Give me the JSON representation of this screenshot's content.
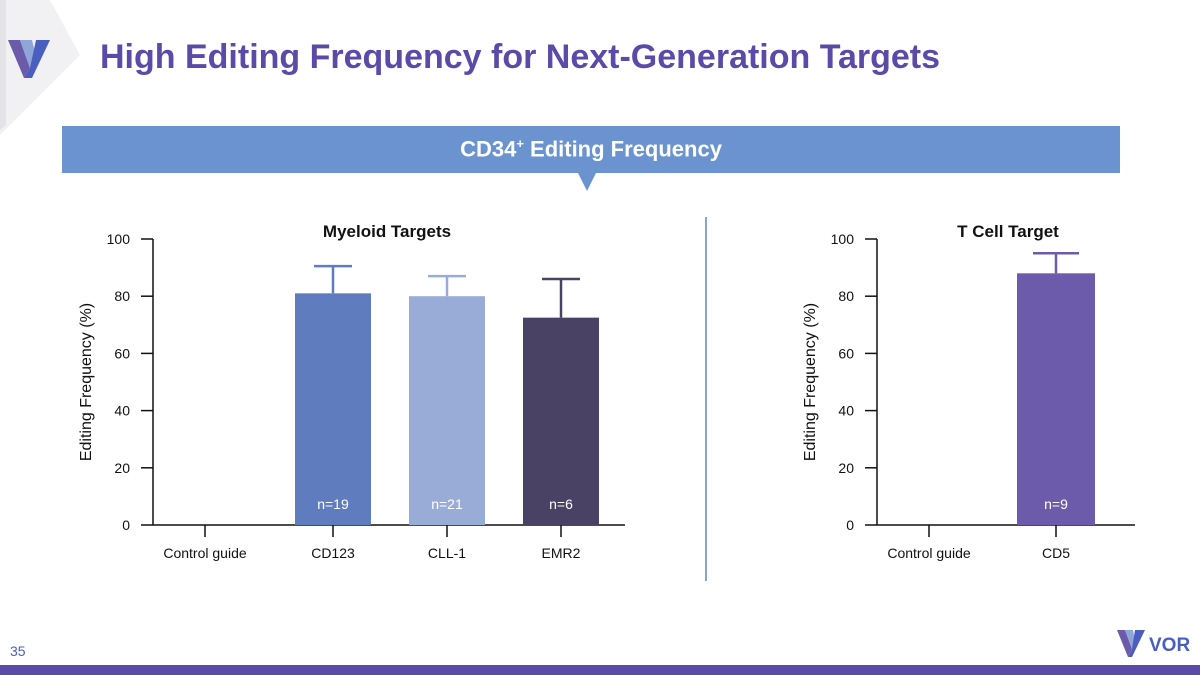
{
  "slide": {
    "title": "High Editing Frequency for Next-Generation Targets",
    "banner": "CD34",
    "banner_sup": "+",
    "banner_rest": " Editing Frequency",
    "page_number": "35",
    "brand": "VOR"
  },
  "colors": {
    "title": "#5b4aa8",
    "banner": "#6a93cf",
    "cd123": "#5f7dbe",
    "cll1": "#99acd8",
    "emr2": "#4a4264",
    "cd5": "#6c5aab",
    "bottom_bar": "#5b4aa8"
  },
  "chart_data": [
    {
      "type": "bar",
      "title": "Myeloid Targets",
      "ylabel": "Editing Frequency (%)",
      "xlabel": "",
      "ylim": [
        0,
        100
      ],
      "yticks": [
        0,
        20,
        40,
        60,
        80,
        100
      ],
      "categories": [
        "Control guide",
        "CD123",
        "CLL-1",
        "EMR2"
      ],
      "values": [
        0,
        81,
        80,
        72.5
      ],
      "error_upper": [
        0,
        90.5,
        87,
        86
      ],
      "sample_labels": [
        "",
        "n=19",
        "n=21",
        "n=6"
      ],
      "bar_colors": [
        "#5f7dbe",
        "#5f7dbe",
        "#99acd8",
        "#4a4264"
      ],
      "grid": false
    },
    {
      "type": "bar",
      "title": "T Cell Target",
      "ylabel": "Editing Frequency (%)",
      "xlabel": "",
      "ylim": [
        0,
        100
      ],
      "yticks": [
        0,
        20,
        40,
        60,
        80,
        100
      ],
      "categories": [
        "Control guide",
        "CD5"
      ],
      "values": [
        0,
        88
      ],
      "error_upper": [
        0,
        95
      ],
      "sample_labels": [
        "",
        "n=9"
      ],
      "bar_colors": [
        "#6c5aab",
        "#6c5aab"
      ],
      "grid": false
    }
  ]
}
